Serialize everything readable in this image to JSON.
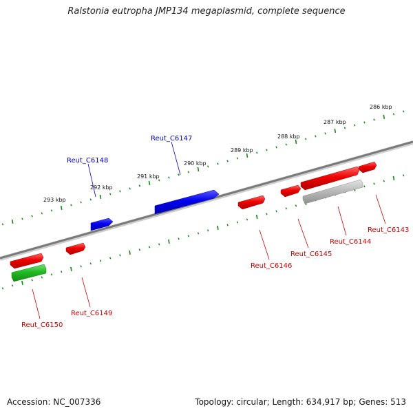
{
  "title": "Ralstonia eutropha JMP134 megaplasmid, complete sequence",
  "footer": {
    "accession": "Accession: NC_007336",
    "summary": "Topology: circular; Length: 634,917 bp; Genes: 513"
  },
  "colors": {
    "forward_gene": "#0000ee",
    "forward_label": "#0000cc",
    "reverse_gene": "#ee0000",
    "reverse_label": "#cc0000",
    "rna_gene": "#22bb22",
    "pseudo_gene": "#bbbbbb",
    "backbone": "#808080",
    "ruler": "#138a13"
  },
  "ruler_labels": [
    "286 kbp",
    "287 kbp",
    "288 kbp",
    "289 kbp",
    "290 kbp",
    "291 kbp",
    "292 kbp",
    "293 kbp"
  ],
  "forward_genes": [
    {
      "label": "Reut_C6147",
      "type": "protein"
    },
    {
      "label": "Reut_C6148",
      "type": "protein"
    }
  ],
  "reverse_genes": [
    {
      "label": "Reut_C6143",
      "type": "protein"
    },
    {
      "label": "Reut_C6144",
      "type": "protein"
    },
    {
      "label": "Reut_C6145",
      "type": "protein"
    },
    {
      "label": "Reut_C6146",
      "type": "protein"
    },
    {
      "label": "Reut_C6149",
      "type": "protein"
    },
    {
      "label": "Reut_C6150",
      "type": "protein"
    }
  ],
  "unlabeled_features": [
    {
      "type": "rna"
    },
    {
      "type": "pseudogene"
    }
  ]
}
